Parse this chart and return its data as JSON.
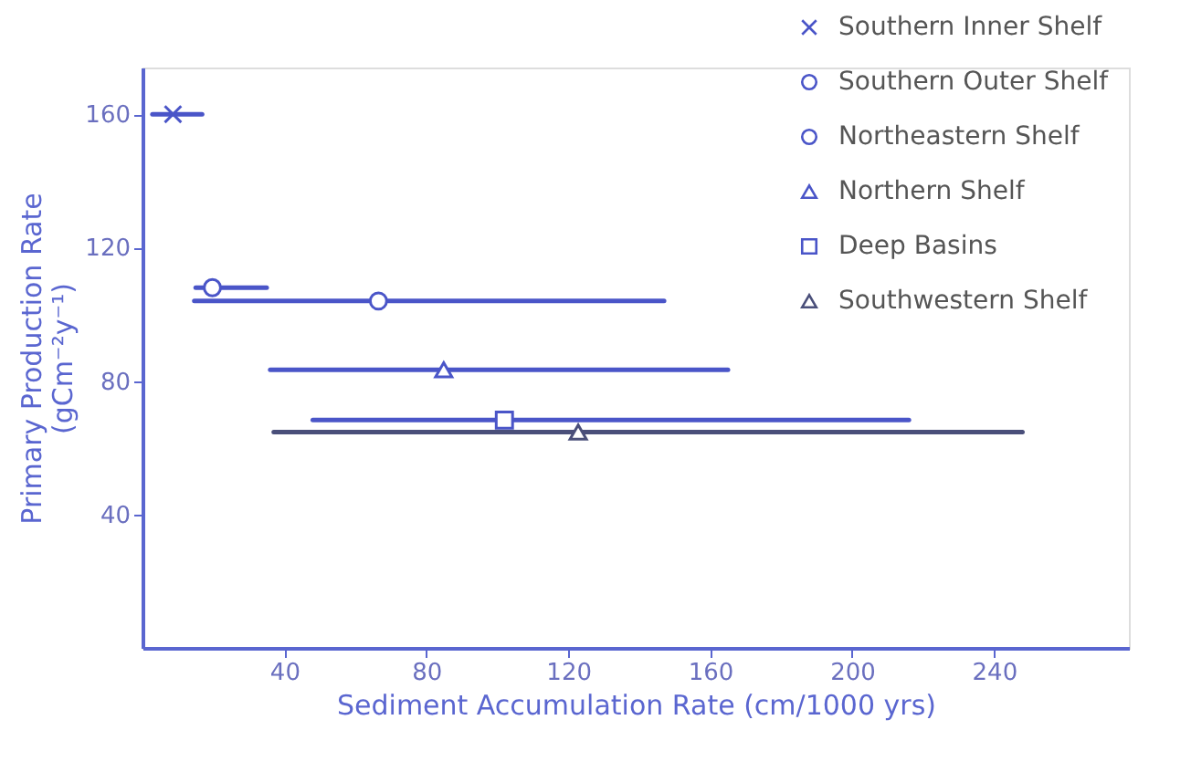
{
  "chart_data": {
    "type": "scatter",
    "xlabel": "Sediment Accumulation Rate (cm/1000 yrs)",
    "ylabel": "Primary Production Rate (gCm⁻²y⁻¹)",
    "xlim": [
      0,
      278
    ],
    "xticks": [
      40,
      80,
      120,
      160,
      200,
      240
    ],
    "ylim": [
      0,
      174
    ],
    "yticks": [
      40,
      80,
      120,
      160
    ],
    "grid": false,
    "legend": "top right",
    "series": [
      {
        "name": "Southern Inner Shelf",
        "color": "#4a55c8",
        "marker": "cross",
        "x": [
          8.6
        ],
        "values": [
          160
        ],
        "xerrors": [
          [
            2.8,
            16.8
          ]
        ]
      },
      {
        "name": "Southern Outer Shelf",
        "color": "#4a55c8",
        "marker": "circle",
        "x": [
          19.7
        ],
        "values": [
          108
        ],
        "xerrors": [
          [
            15,
            35
          ]
        ]
      },
      {
        "name": "Northeastern Shelf",
        "color": "#4a55c8",
        "marker": "circle",
        "x": [
          66.5
        ],
        "values": [
          104
        ],
        "xerrors": [
          [
            14.6,
            147
          ]
        ]
      },
      {
        "name": "Northern Shelf",
        "color": "#4a55c8",
        "marker": "triangle",
        "x": [
          84.9
        ],
        "values": [
          83.4
        ],
        "xerrors": [
          [
            36,
            165
          ]
        ]
      },
      {
        "name": "Deep Basins",
        "color": "#4a55c8",
        "marker": "square",
        "x": [
          102
        ],
        "values": [
          68.3
        ],
        "xerrors": [
          [
            48,
            216
          ]
        ]
      },
      {
        "name": "Southwestern Shelf",
        "color": "#4a4f7a",
        "marker": "triangle",
        "x": [
          122.8
        ],
        "values": [
          64.7
        ],
        "xerrors": [
          [
            37,
            248
          ]
        ]
      }
    ]
  }
}
